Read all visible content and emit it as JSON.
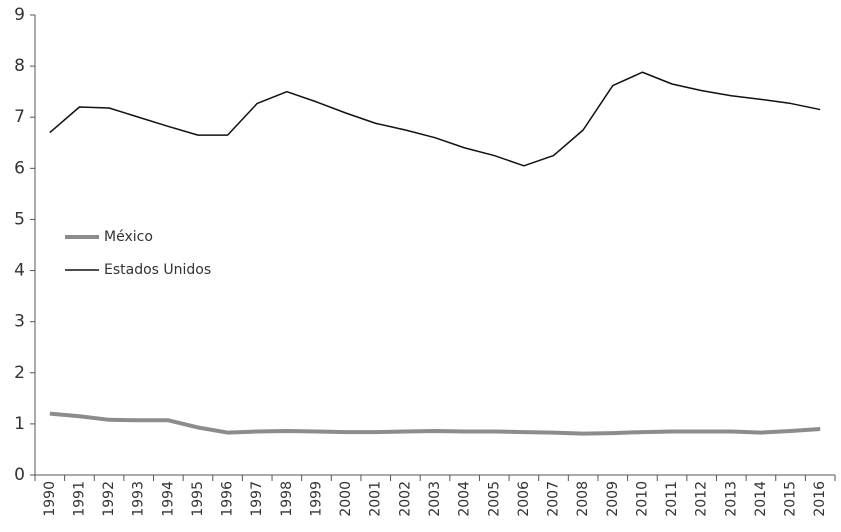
{
  "chart_data": {
    "type": "line",
    "categories": [
      "1990",
      "1991",
      "1992",
      "1993",
      "1994",
      "1995",
      "1996",
      "1997",
      "1998",
      "1999",
      "2000",
      "2001",
      "2002",
      "2003",
      "2004",
      "2005",
      "2006",
      "2007",
      "2008",
      "2009",
      "2010",
      "2011",
      "2012",
      "2013",
      "2014",
      "2015",
      "2016"
    ],
    "series": [
      {
        "name": "México",
        "color": "#8c8c8c",
        "values": [
          1.2,
          1.15,
          1.08,
          1.07,
          1.07,
          0.93,
          0.83,
          0.85,
          0.86,
          0.85,
          0.84,
          0.84,
          0.85,
          0.86,
          0.85,
          0.85,
          0.84,
          0.83,
          0.81,
          0.82,
          0.84,
          0.85,
          0.85,
          0.85,
          0.83,
          0.86,
          0.9
        ]
      },
      {
        "name": "Estados Unidos",
        "color": "#111111",
        "values": [
          6.7,
          7.2,
          7.18,
          7.0,
          6.82,
          6.65,
          6.65,
          7.27,
          7.5,
          7.3,
          7.08,
          6.88,
          6.75,
          6.6,
          6.4,
          6.25,
          6.05,
          6.25,
          6.75,
          7.62,
          7.88,
          7.65,
          7.52,
          7.42,
          7.35,
          7.27,
          7.15
        ]
      }
    ],
    "ylim": [
      0,
      9
    ],
    "yticks": [
      0,
      1,
      2,
      3,
      4,
      5,
      6,
      7,
      8,
      9
    ],
    "legend": "center-left"
  }
}
